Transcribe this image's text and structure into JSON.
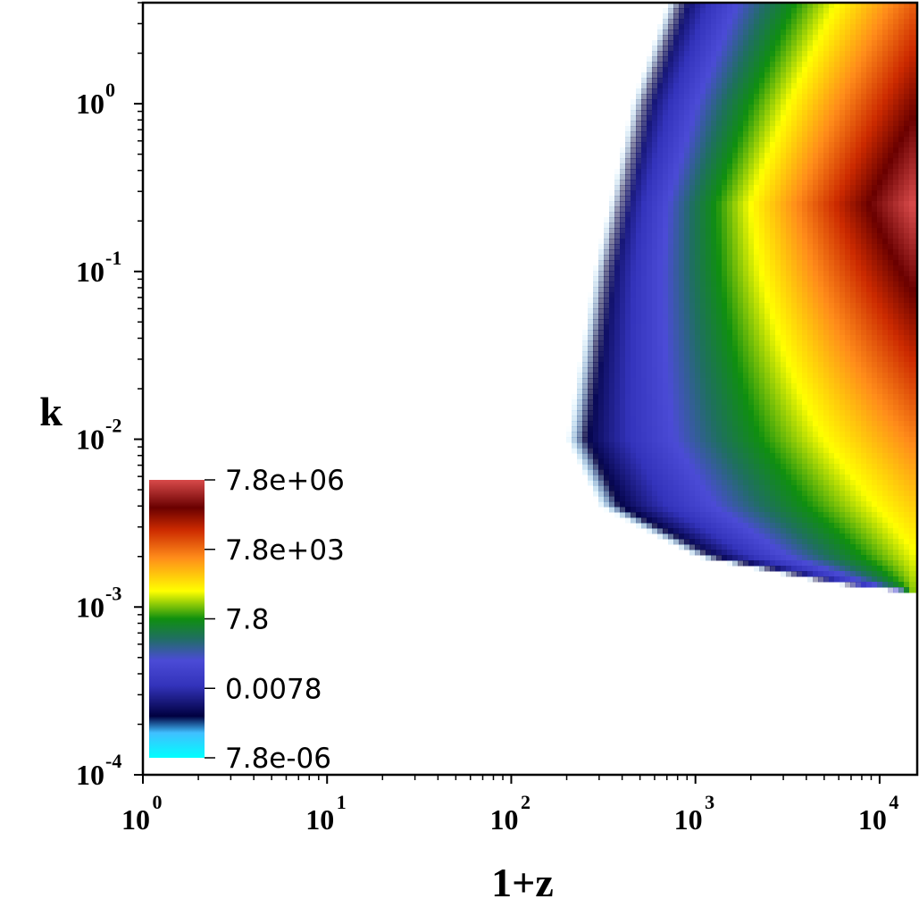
{
  "chart_data": {
    "type": "heatmap",
    "title": "",
    "xlabel": "1+z",
    "ylabel": "k",
    "x_scale": "log",
    "y_scale": "log",
    "xlim": [
      1,
      16000
    ],
    "ylim": [
      0.0001,
      4
    ],
    "x_ticks": [
      {
        "value": 1,
        "base": "10",
        "exp": "0"
      },
      {
        "value": 10,
        "base": "10",
        "exp": "1"
      },
      {
        "value": 100,
        "base": "10",
        "exp": "2"
      },
      {
        "value": 1000,
        "base": "10",
        "exp": "3"
      },
      {
        "value": 10000,
        "base": "10",
        "exp": "4"
      }
    ],
    "y_ticks": [
      {
        "value": 0.0001,
        "base": "10",
        "exp": "-4"
      },
      {
        "value": 0.001,
        "base": "10",
        "exp": "-3"
      },
      {
        "value": 0.01,
        "base": "10",
        "exp": "-2"
      },
      {
        "value": 0.1,
        "base": "10",
        "exp": "-1"
      },
      {
        "value": 1,
        "base": "10",
        "exp": "0"
      }
    ],
    "colorbar": {
      "scale": "log",
      "range": [
        7.8e-06,
        7800000.0
      ],
      "placement": "lower-left inside plot",
      "ticks": [
        {
          "value": 7.8e-06,
          "label": "7.8e-06"
        },
        {
          "value": 0.0078,
          "label": "0.0078"
        },
        {
          "value": 7.8,
          "label": "7.8"
        },
        {
          "value": 7800,
          "label": "7.8e+03"
        },
        {
          "value": 7800000,
          "label": "7.8e+06"
        }
      ],
      "colors": [
        {
          "t": 0.0,
          "color": "#00ffff"
        },
        {
          "t": 0.09,
          "color": "#40bfff"
        },
        {
          "t": 0.15,
          "color": "#000040"
        },
        {
          "t": 0.26,
          "color": "#3333bb"
        },
        {
          "t": 0.35,
          "color": "#4b4bd6"
        },
        {
          "t": 0.43,
          "color": "#1f6f60"
        },
        {
          "t": 0.5,
          "color": "#0f8f0f"
        },
        {
          "t": 0.6,
          "color": "#ffff00"
        },
        {
          "t": 0.72,
          "color": "#ff8c1a"
        },
        {
          "t": 0.82,
          "color": "#cc2a00"
        },
        {
          "t": 0.9,
          "color": "#6a0000"
        },
        {
          "t": 1.0,
          "color": "#d84a4a"
        }
      ]
    },
    "contour_bands_in_data_units": {
      "description_fields": "x values of the outer edge (1+z) at selected k",
      "nonzero_edge": [
        {
          "k": 4.0,
          "x": 700
        },
        {
          "k": 1.0,
          "x": 450
        },
        {
          "k": 0.1,
          "x": 280
        },
        {
          "k": 0.01,
          "x": 200
        },
        {
          "k": 0.004,
          "x": 300
        },
        {
          "k": 0.002,
          "x": 1000
        },
        {
          "k": 0.0014,
          "x": 5000
        },
        {
          "k": 0.0012,
          "x": 16000
        }
      ],
      "peak": {
        "x": 15000,
        "k": 0.25,
        "value": 7800000
      }
    }
  }
}
